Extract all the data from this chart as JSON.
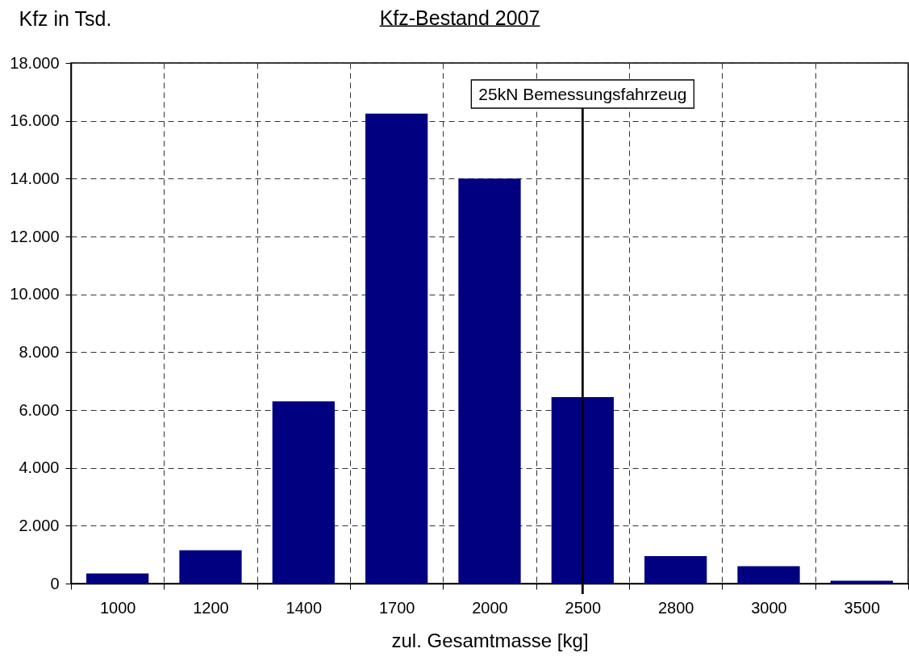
{
  "chart_data": {
    "type": "bar",
    "title": "Kfz-Bestand 2007",
    "xlabel": "zul. Gesamtmasse [kg]",
    "ylabel": "Kfz in Tsd.",
    "categories": [
      "1000",
      "1200",
      "1400",
      "1700",
      "2000",
      "2500",
      "2800",
      "3000",
      "3500"
    ],
    "values": [
      350,
      1150,
      6300,
      16250,
      14000,
      6450,
      950,
      600,
      100
    ],
    "color": "#000080",
    "ylim": [
      0,
      18000
    ],
    "yticks": [
      0,
      {
        "value": 2000,
        "label": "2.000"
      },
      {
        "value": 4000,
        "label": "4.000"
      },
      {
        "value": 6000,
        "label": "6.000"
      },
      {
        "value": 8000,
        "label": "8.000"
      },
      {
        "value": 10000,
        "label": "10.000"
      },
      {
        "value": 12000,
        "label": "12.000"
      },
      {
        "value": 14000,
        "label": "14.000"
      },
      {
        "value": 16000,
        "label": "16.000"
      },
      {
        "value": 18000,
        "label": "18.000"
      }
    ],
    "grid": true,
    "ref_lines": [
      {
        "axis": "x",
        "value": "2500",
        "label": "25kN Bemessungsfahrzeug"
      }
    ]
  }
}
